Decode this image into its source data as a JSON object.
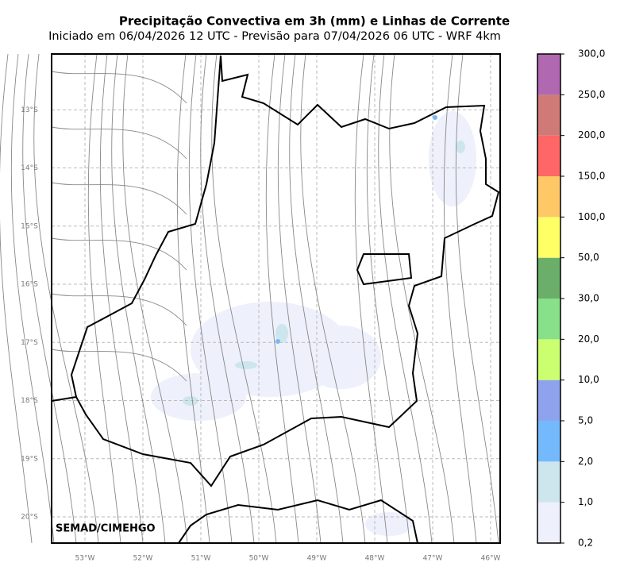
{
  "title": "Precipitação Convectiva em 3h (mm) e Linhas de Corrente",
  "subtitle": "Iniciado em 06/04/2026 12 UTC - Previsão para 07/04/2026 06 UTC - WRF 4km",
  "credit": "SEMAD/CIMEHGO",
  "xlim": [
    -53.575,
    -45.836
  ],
  "ylim": [
    -20.45,
    -12.04
  ],
  "xticks": [
    {
      "value": -53,
      "label": "53°W"
    },
    {
      "value": -52,
      "label": "52°W"
    },
    {
      "value": -51,
      "label": "51°W"
    },
    {
      "value": -50,
      "label": "50°W"
    },
    {
      "value": -49,
      "label": "49°W"
    },
    {
      "value": -48,
      "label": "48°W"
    },
    {
      "value": -47,
      "label": "47°W"
    },
    {
      "value": -46,
      "label": "46°W"
    }
  ],
  "yticks": [
    {
      "value": -13,
      "label": "13°S"
    },
    {
      "value": -14,
      "label": "14°S"
    },
    {
      "value": -15,
      "label": "15°S"
    },
    {
      "value": -16,
      "label": "16°S"
    },
    {
      "value": -17,
      "label": "17°S"
    },
    {
      "value": -18,
      "label": "18°S"
    },
    {
      "value": -19,
      "label": "19°S"
    },
    {
      "value": -20,
      "label": "20°S"
    }
  ],
  "grid": true,
  "colorbar": {
    "labels": [
      "0,2",
      "1,0",
      "2,0",
      "5,0",
      "10,0",
      "20,0",
      "30,0",
      "50,0",
      "100,0",
      "150,0",
      "200,0",
      "250,0",
      "300,0"
    ],
    "colors": [
      "#eef0fb",
      "#cde6ee",
      "#74b9fb",
      "#8ea3ee",
      "#ccff70",
      "#88e088",
      "#6aae6a",
      "#ffff66",
      "#ffc866",
      "#ff6666",
      "#d07a78",
      "#b068b0"
    ]
  }
}
